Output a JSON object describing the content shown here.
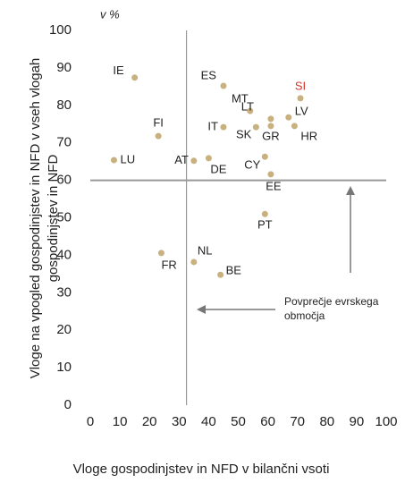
{
  "chart_data": {
    "type": "scatter",
    "unit_label": "v %",
    "x_label": "Vloge gospodinjstev in NFD v bilančni vsoti",
    "y_label": [
      "Vloge na vpogled gospodinjstev in NFD v vseh vlogah",
      "gospodinjstev in NFD"
    ],
    "point_labels": [
      "IE",
      "ES",
      "MT",
      "LT",
      "SI",
      "LV",
      "HR",
      "GR",
      "SK",
      "IT",
      "FI",
      "LU",
      "AT",
      "DE",
      "CY",
      "EE",
      "PT",
      "NL",
      "FR",
      "BE"
    ],
    "x": [
      15,
      45,
      54,
      61,
      71,
      67,
      69,
      61,
      56,
      45,
      23,
      8,
      35,
      40,
      59,
      61,
      59,
      35,
      24,
      44
    ],
    "y": [
      87.4,
      85.2,
      78.5,
      76.4,
      81.9,
      76.8,
      74.5,
      74.5,
      74.2,
      74.2,
      71.8,
      65.4,
      65.2,
      65.9,
      66.3,
      61.6,
      51,
      38.2,
      40.6,
      34.8
    ],
    "color": "#c8b07f",
    "label_colors": [
      "#222",
      "#222",
      "#222",
      "#222",
      "#d0342c",
      "#222",
      "#222",
      "#222",
      "#222",
      "#222",
      "#222",
      "#222",
      "#222",
      "#222",
      "#222",
      "#222",
      "#222",
      "#222",
      "#222",
      "#222"
    ],
    "reference_x": 32.5,
    "reference_y": 60,
    "annotation": [
      "Povprečje evrskega",
      "območja"
    ],
    "xlim": [
      0,
      100
    ],
    "xticks": [
      0,
      10,
      20,
      30,
      40,
      50,
      60,
      70,
      80,
      90,
      100
    ],
    "ylim": [
      0,
      100
    ],
    "yticks": [
      0,
      10,
      20,
      30,
      40,
      50,
      60,
      70,
      80,
      90,
      100
    ]
  }
}
